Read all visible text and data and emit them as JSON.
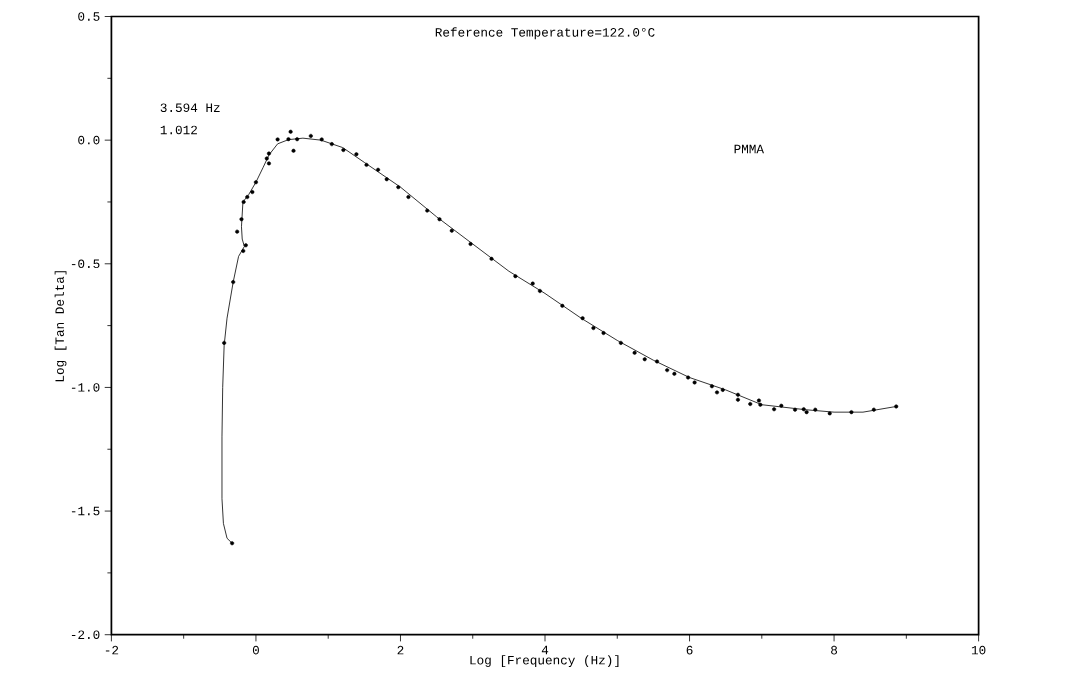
{
  "chart_data": {
    "type": "scatter",
    "xlabel": "Log [Frequency (Hz)]",
    "ylabel": "Log [Tan Delta]",
    "annotations": [
      "Reference Temperature=122.0°C",
      "3.594 Hz",
      "1.012",
      "PMMA"
    ],
    "xlim": [
      -2,
      10
    ],
    "ylim": [
      -2.0,
      0.5
    ],
    "xticks": [
      -2,
      0,
      2,
      4,
      6,
      8,
      10
    ],
    "yticks": [
      {
        "value": -2.0,
        "label": "-2.0"
      },
      {
        "value": -1.5,
        "label": "-1.5"
      },
      {
        "value": -1.0,
        "label": "-1.0"
      },
      {
        "value": -0.5,
        "label": "-0.5"
      },
      {
        "value": 0.0,
        "label": "0.0"
      },
      {
        "value": 0.5,
        "label": "0.5"
      }
    ],
    "grid": false,
    "marker": "circle",
    "series": [
      {
        "type": "line",
        "color": "#000000",
        "marker": "none",
        "line_style": "solid",
        "x": [
          -0.33,
          -0.4,
          -0.45,
          -0.47,
          -0.47,
          -0.46,
          -0.44,
          -0.4,
          -0.315,
          -0.24,
          -0.16,
          -0.19,
          -0.2,
          -0.18,
          -0.1,
          0.0,
          0.1,
          0.18,
          0.3,
          0.45,
          0.65,
          0.9,
          1.2,
          1.5,
          2.0,
          2.5,
          3.0,
          3.5,
          4.0,
          4.5,
          5.0,
          5.5,
          6.0,
          6.5,
          7.0,
          7.3,
          7.6,
          8.0,
          8.4,
          8.86
        ],
        "values": [
          -1.63,
          -1.61,
          -1.55,
          -1.45,
          -1.2,
          -1.0,
          -0.83,
          -0.72,
          -0.574,
          -0.47,
          -0.43,
          -0.4,
          -0.35,
          -0.25,
          -0.22,
          -0.17,
          -0.11,
          -0.06,
          -0.015,
          0.002,
          0.008,
          0.0,
          -0.03,
          -0.09,
          -0.19,
          -0.31,
          -0.42,
          -0.53,
          -0.62,
          -0.72,
          -0.81,
          -0.89,
          -0.96,
          -1.01,
          -1.07,
          -1.08,
          -1.09,
          -1.1,
          -1.1,
          -1.077
        ]
      },
      {
        "color": "#000000",
        "x": [
          -0.33,
          -0.44,
          -0.315,
          -0.176,
          -0.14,
          -0.26,
          -0.2,
          -0.17,
          -0.12,
          -0.05,
          0.0,
          0.15,
          0.18,
          0.18,
          0.3,
          0.45,
          0.48,
          0.52,
          0.57,
          0.76,
          0.91,
          1.05,
          1.21,
          1.39,
          1.53,
          1.69,
          1.81,
          1.97,
          2.11,
          2.37,
          2.54,
          2.71,
          2.97,
          3.26,
          3.59,
          3.83,
          3.93,
          4.24,
          4.52,
          4.67,
          4.81,
          5.05,
          5.24,
          5.38,
          5.55,
          5.69,
          5.79,
          5.98,
          6.07,
          6.31,
          6.38,
          6.46,
          6.67,
          6.67,
          6.84,
          6.96,
          6.98,
          7.17,
          7.27,
          7.46,
          7.58,
          7.62,
          7.74,
          7.94,
          8.24,
          8.55,
          8.86
        ],
        "values": [
          -1.63,
          -0.82,
          -0.574,
          -0.448,
          -0.425,
          -0.37,
          -0.32,
          -0.25,
          -0.23,
          -0.21,
          -0.17,
          -0.074,
          -0.094,
          -0.054,
          0.003,
          0.004,
          0.034,
          -0.043,
          0.004,
          0.017,
          0.003,
          -0.016,
          -0.04,
          -0.057,
          -0.1,
          -0.12,
          -0.158,
          -0.19,
          -0.23,
          -0.285,
          -0.32,
          -0.366,
          -0.42,
          -0.48,
          -0.55,
          -0.58,
          -0.61,
          -0.67,
          -0.72,
          -0.76,
          -0.78,
          -0.82,
          -0.86,
          -0.886,
          -0.895,
          -0.93,
          -0.945,
          -0.96,
          -0.98,
          -0.995,
          -1.02,
          -1.01,
          -1.03,
          -1.05,
          -1.067,
          -1.053,
          -1.07,
          -1.088,
          -1.074,
          -1.09,
          -1.088,
          -1.1,
          -1.09,
          -1.105,
          -1.1,
          -1.09,
          -1.077
        ]
      }
    ]
  }
}
